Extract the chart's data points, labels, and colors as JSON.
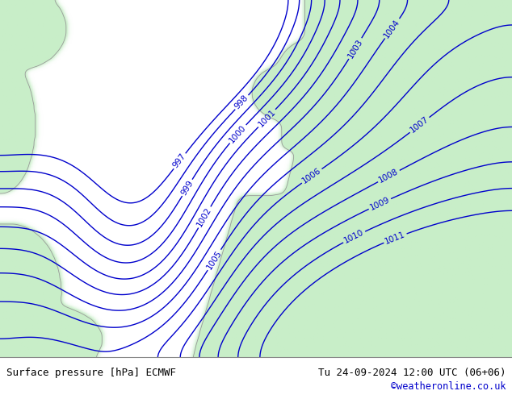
{
  "title_left": "Surface pressure [hPa] ECMWF",
  "title_right": "Tu 24-09-2024 12:00 UTC (06+06)",
  "credit": "©weatheronline.co.uk",
  "sea_color": "#d8d8d8",
  "land_color_rgb": [
    200,
    238,
    200
  ],
  "contour_color": "#0000cc",
  "label_color": "#0000cc",
  "bottom_bar_color": "#d4d4d4",
  "bottom_text_color": "#000000",
  "credit_color": "#0000cc",
  "figsize": [
    6.34,
    4.9
  ],
  "dpi": 100,
  "title_fontsize": 9,
  "label_fontsize": 7.5,
  "border_color": "#888888"
}
